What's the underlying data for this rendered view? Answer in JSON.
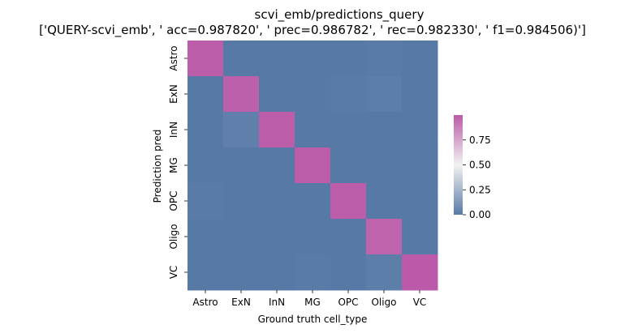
{
  "chart_data": {
    "type": "heatmap",
    "title": "scvi_emb/predictions_query",
    "subtitle": "['QUERY-scvi_emb', ' acc=0.987820', ' prec=0.986782', ' rec=0.982330', ' f1=0.984506)']",
    "xlabel": "Ground truth cell_type",
    "ylabel": "Prediction pred",
    "x_categories": [
      "Astro",
      "ExN",
      "InN",
      "MG",
      "OPC",
      "Oligo",
      "VC"
    ],
    "y_categories": [
      "Astro",
      "ExN",
      "InN",
      "MG",
      "OPC",
      "Oligo",
      "VC"
    ],
    "values": [
      [
        0.99,
        0.0,
        0.0,
        0.0,
        0.0,
        0.01,
        0.0
      ],
      [
        0.0,
        0.98,
        0.0,
        0.0,
        0.01,
        0.02,
        0.0
      ],
      [
        0.0,
        0.03,
        0.99,
        0.0,
        0.0,
        0.0,
        0.0
      ],
      [
        0.0,
        0.0,
        0.0,
        0.99,
        0.0,
        0.0,
        0.0
      ],
      [
        0.01,
        0.0,
        0.0,
        0.0,
        0.99,
        0.0,
        0.0
      ],
      [
        0.0,
        0.0,
        0.0,
        0.0,
        0.0,
        0.97,
        0.0
      ],
      [
        0.0,
        0.0,
        0.0,
        0.01,
        0.0,
        0.02,
        1.0
      ]
    ],
    "colorbar": {
      "range": [
        0,
        1
      ],
      "ticks": [
        0.0,
        0.25,
        0.5,
        0.75
      ],
      "tick_labels": [
        "0.00",
        "0.25",
        "0.50",
        "0.75"
      ],
      "colors": {
        "low": "#5779a6",
        "mid": "#f2f2f2",
        "high": "#bb5aa8"
      }
    }
  }
}
